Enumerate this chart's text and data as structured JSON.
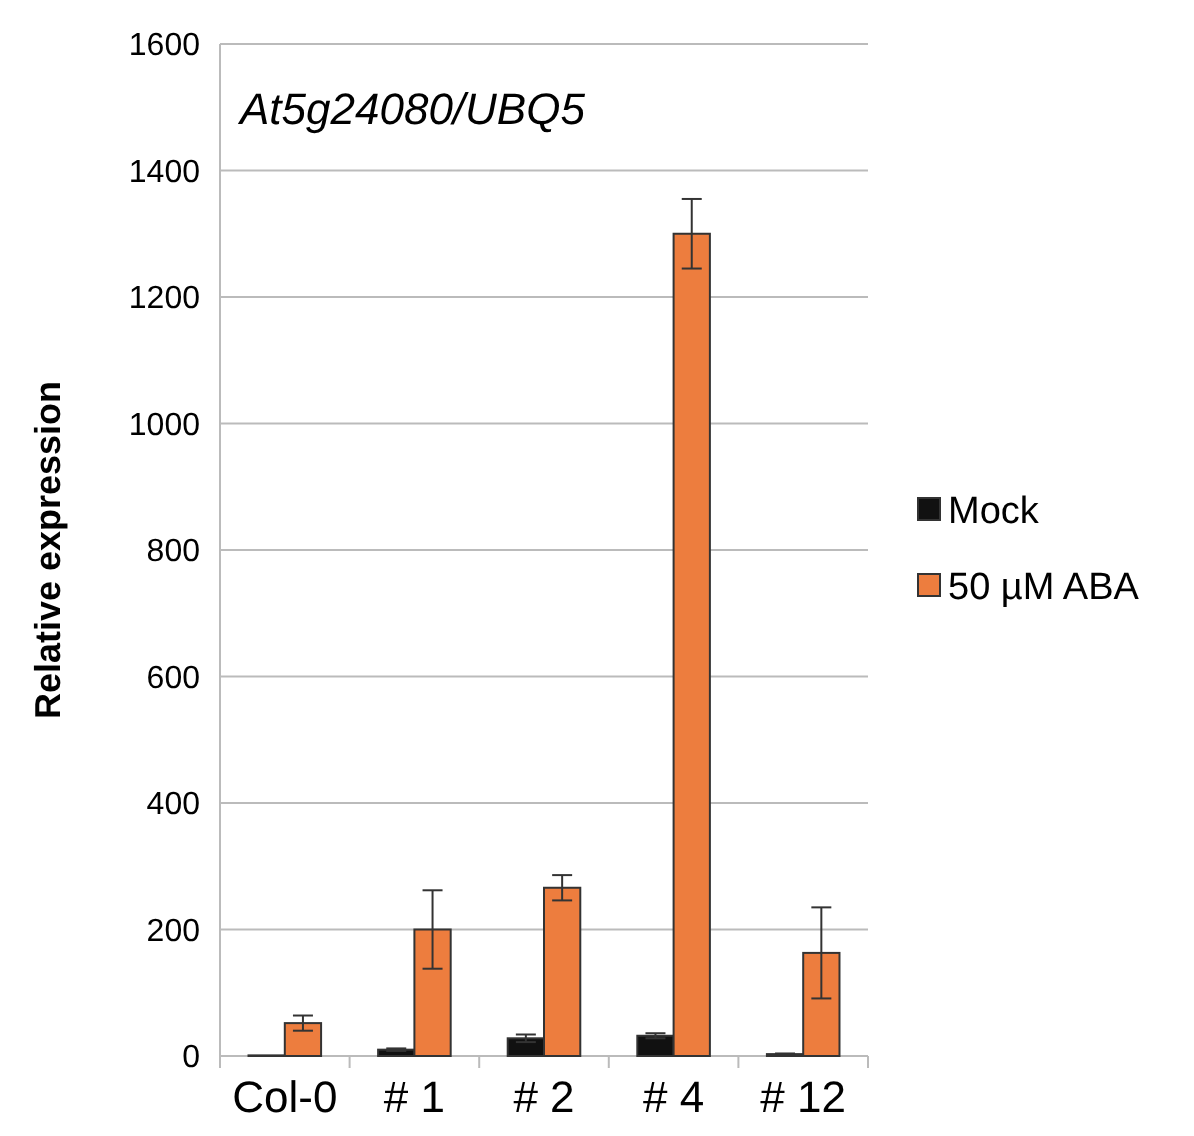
{
  "chart_data": {
    "type": "bar",
    "title": "At5g24080/UBQ5",
    "ylabel": "Relative expression",
    "categories": [
      "Col-0",
      "# 1",
      "# 2",
      "# 4",
      "# 12"
    ],
    "series": [
      {
        "name": "Mock",
        "color": "#111111",
        "values": [
          1,
          10,
          28,
          32,
          3
        ],
        "errors": [
          null,
          2,
          6,
          4,
          1
        ]
      },
      {
        "name": "50 µM ABA",
        "color": "#ed7d3e",
        "values": [
          52,
          200,
          266,
          1300,
          163
        ],
        "errors": [
          12,
          62,
          20,
          55,
          72
        ]
      }
    ],
    "ylim": [
      0,
      1600
    ],
    "yticks": [
      0,
      200,
      400,
      600,
      800,
      1000,
      1200,
      1400,
      1600
    ],
    "grid": "y",
    "legend": "right"
  }
}
